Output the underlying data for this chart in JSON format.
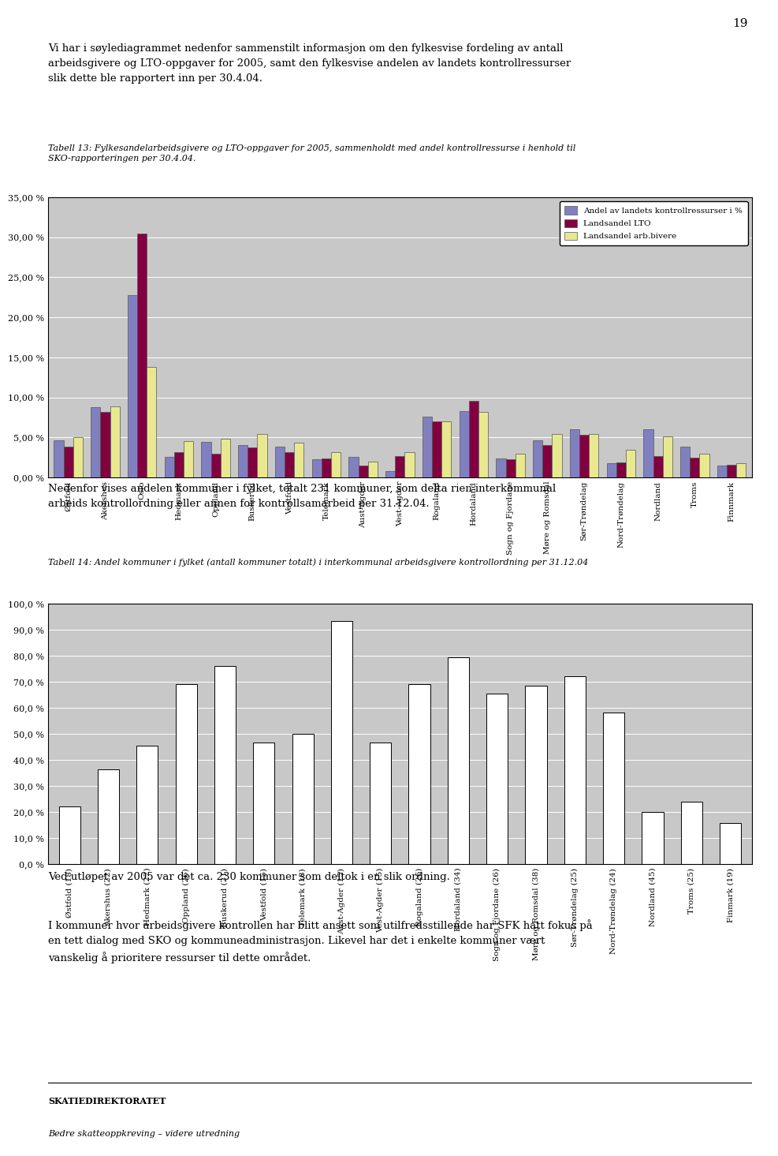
{
  "page_number": "19",
  "intro_text": "Vi har i søylediagrammet nedenfor sammenstilt informasjon om den fylkesvise fordeling av antall\narbeidsgivere og LTO-oppgaver for 2005, samt den fylkesvise andelen av landets kontrollressurser\nslik dette ble rapportert inn per 30.4.04.",
  "table13_caption": "Tabell 13: Fylkesandelarbeidsgivere og LTO-oppgaver for 2005, sammenholdt med andel kontrollressurse i henhold til\nSKO-rapporteringen per 30.4.04.",
  "chart1": {
    "ylim": [
      0,
      0.35
    ],
    "yticks": [
      0.0,
      0.05,
      0.1,
      0.15,
      0.2,
      0.25,
      0.3,
      0.35
    ],
    "yticklabels": [
      "0,00 %",
      "5,00 %",
      "10,00 %",
      "15,00 %",
      "20,00 %",
      "25,00 %",
      "30,00 %",
      "35,00 %"
    ],
    "categories": [
      "Østfold",
      "Akershus",
      "Oslo",
      "Hedmark",
      "Oppland",
      "Buskerud",
      "Vestfold",
      "Telemark",
      "Aust-Agder",
      "Vest-Agder",
      "Rogaland",
      "Hordaland",
      "Sogn og Fjordane",
      "Møre og Romsdal",
      "Sør-Trøndelag",
      "Nord-Trøndelag",
      "Nordland",
      "Troms",
      "Finnmark"
    ],
    "series1_label": "Andel av landets kontrollressurser i %",
    "series2_label": "Landsandel LTO",
    "series3_label": "Landsandel arb.bivere",
    "series1_color": "#8080c0",
    "series2_color": "#800040",
    "series3_color": "#e8e890",
    "series1": [
      0.046,
      0.088,
      0.228,
      0.026,
      0.044,
      0.04,
      0.038,
      0.023,
      0.026,
      0.008,
      0.076,
      0.083,
      0.024,
      0.046,
      0.06,
      0.018,
      0.06,
      0.038,
      0.015
    ],
    "series2": [
      0.038,
      0.082,
      0.305,
      0.032,
      0.03,
      0.037,
      0.032,
      0.024,
      0.015,
      0.027,
      0.07,
      0.096,
      0.023,
      0.04,
      0.053,
      0.019,
      0.027,
      0.025,
      0.016
    ],
    "series3": [
      0.05,
      0.089,
      0.138,
      0.045,
      0.048,
      0.054,
      0.043,
      0.032,
      0.02,
      0.032,
      0.07,
      0.082,
      0.03,
      0.054,
      0.054,
      0.035,
      0.051,
      0.03,
      0.018
    ],
    "bg_color": "#c8c8c8",
    "legend_bg": "#ffffff",
    "border_color": "#000000"
  },
  "mid_text": "Nedenfor vises andelen kommuner i fylket, totalt 231 kommuner, som delta rien interkommunal\narbeids kontrollordning eller annen for kontrollsamarbeid per 31.12.04.",
  "table14_caption": "Tabell 14: Andel kommuner i fylket (antall kommuner totalt) i interkommunal arbeidsgivere kontrollordning per 31.12.04",
  "chart2": {
    "ylim": [
      0,
      1.0
    ],
    "yticks": [
      0.0,
      0.1,
      0.2,
      0.3,
      0.4,
      0.5,
      0.6,
      0.7,
      0.8,
      0.9,
      1.0
    ],
    "yticklabels": [
      "0,0 %",
      "10,0 %",
      "20,0 %",
      "30,0 %",
      "40,0 %",
      "50,0 %",
      "60,0 %",
      "70,0 %",
      "80,0 %",
      "90,0 %",
      "100,0 %"
    ],
    "categories": [
      "Østfold (18)",
      "Akershus (22)",
      "Hedmark (22)",
      "Oppland (26)",
      "Buskerud (21)",
      "Vestfold (15)",
      "Telemark (18)",
      "Aust-Agder (15)",
      "Vest-Agder (15)",
      "Rogaland (26)",
      "Hordaland (34)",
      "Sogn og Fjordane (26)",
      "Møre og Romsdal (38)",
      "Sør-Trøndelag (25)",
      "Nord-Trøndelag (24)",
      "Nordland (45)",
      "Troms (25)",
      "Finmark (19)"
    ],
    "values": [
      0.222,
      0.364,
      0.455,
      0.692,
      0.762,
      0.467,
      0.5,
      0.933,
      0.467,
      0.692,
      0.794,
      0.654,
      0.684,
      0.72,
      0.583,
      0.2,
      0.24,
      0.158
    ],
    "bar_color": "#ffffff",
    "bg_color": "#c8c8c8",
    "border_color": "#000000"
  },
  "bottom_text1": "Ved utløpet av 2005 var det ca. 230 kommuner som deltok i en slik ordning.",
  "bottom_text2": "I kommuner hvor arbeidsgivere kontrollen har blitt ansett som utilfredsstillende har SFK hatt fokus på\nen tett dialog med SKO og kommuneadministrasjon. Likevel har det i enkelte kommuner vært\nvanskelig å prioritere ressurser til dette området.",
  "footer_bold": "SKATIEDIREKTORATET",
  "footer_italic": "Bedre skatteoppkreving – videre utredning",
  "font_family": "DejaVu Serif"
}
